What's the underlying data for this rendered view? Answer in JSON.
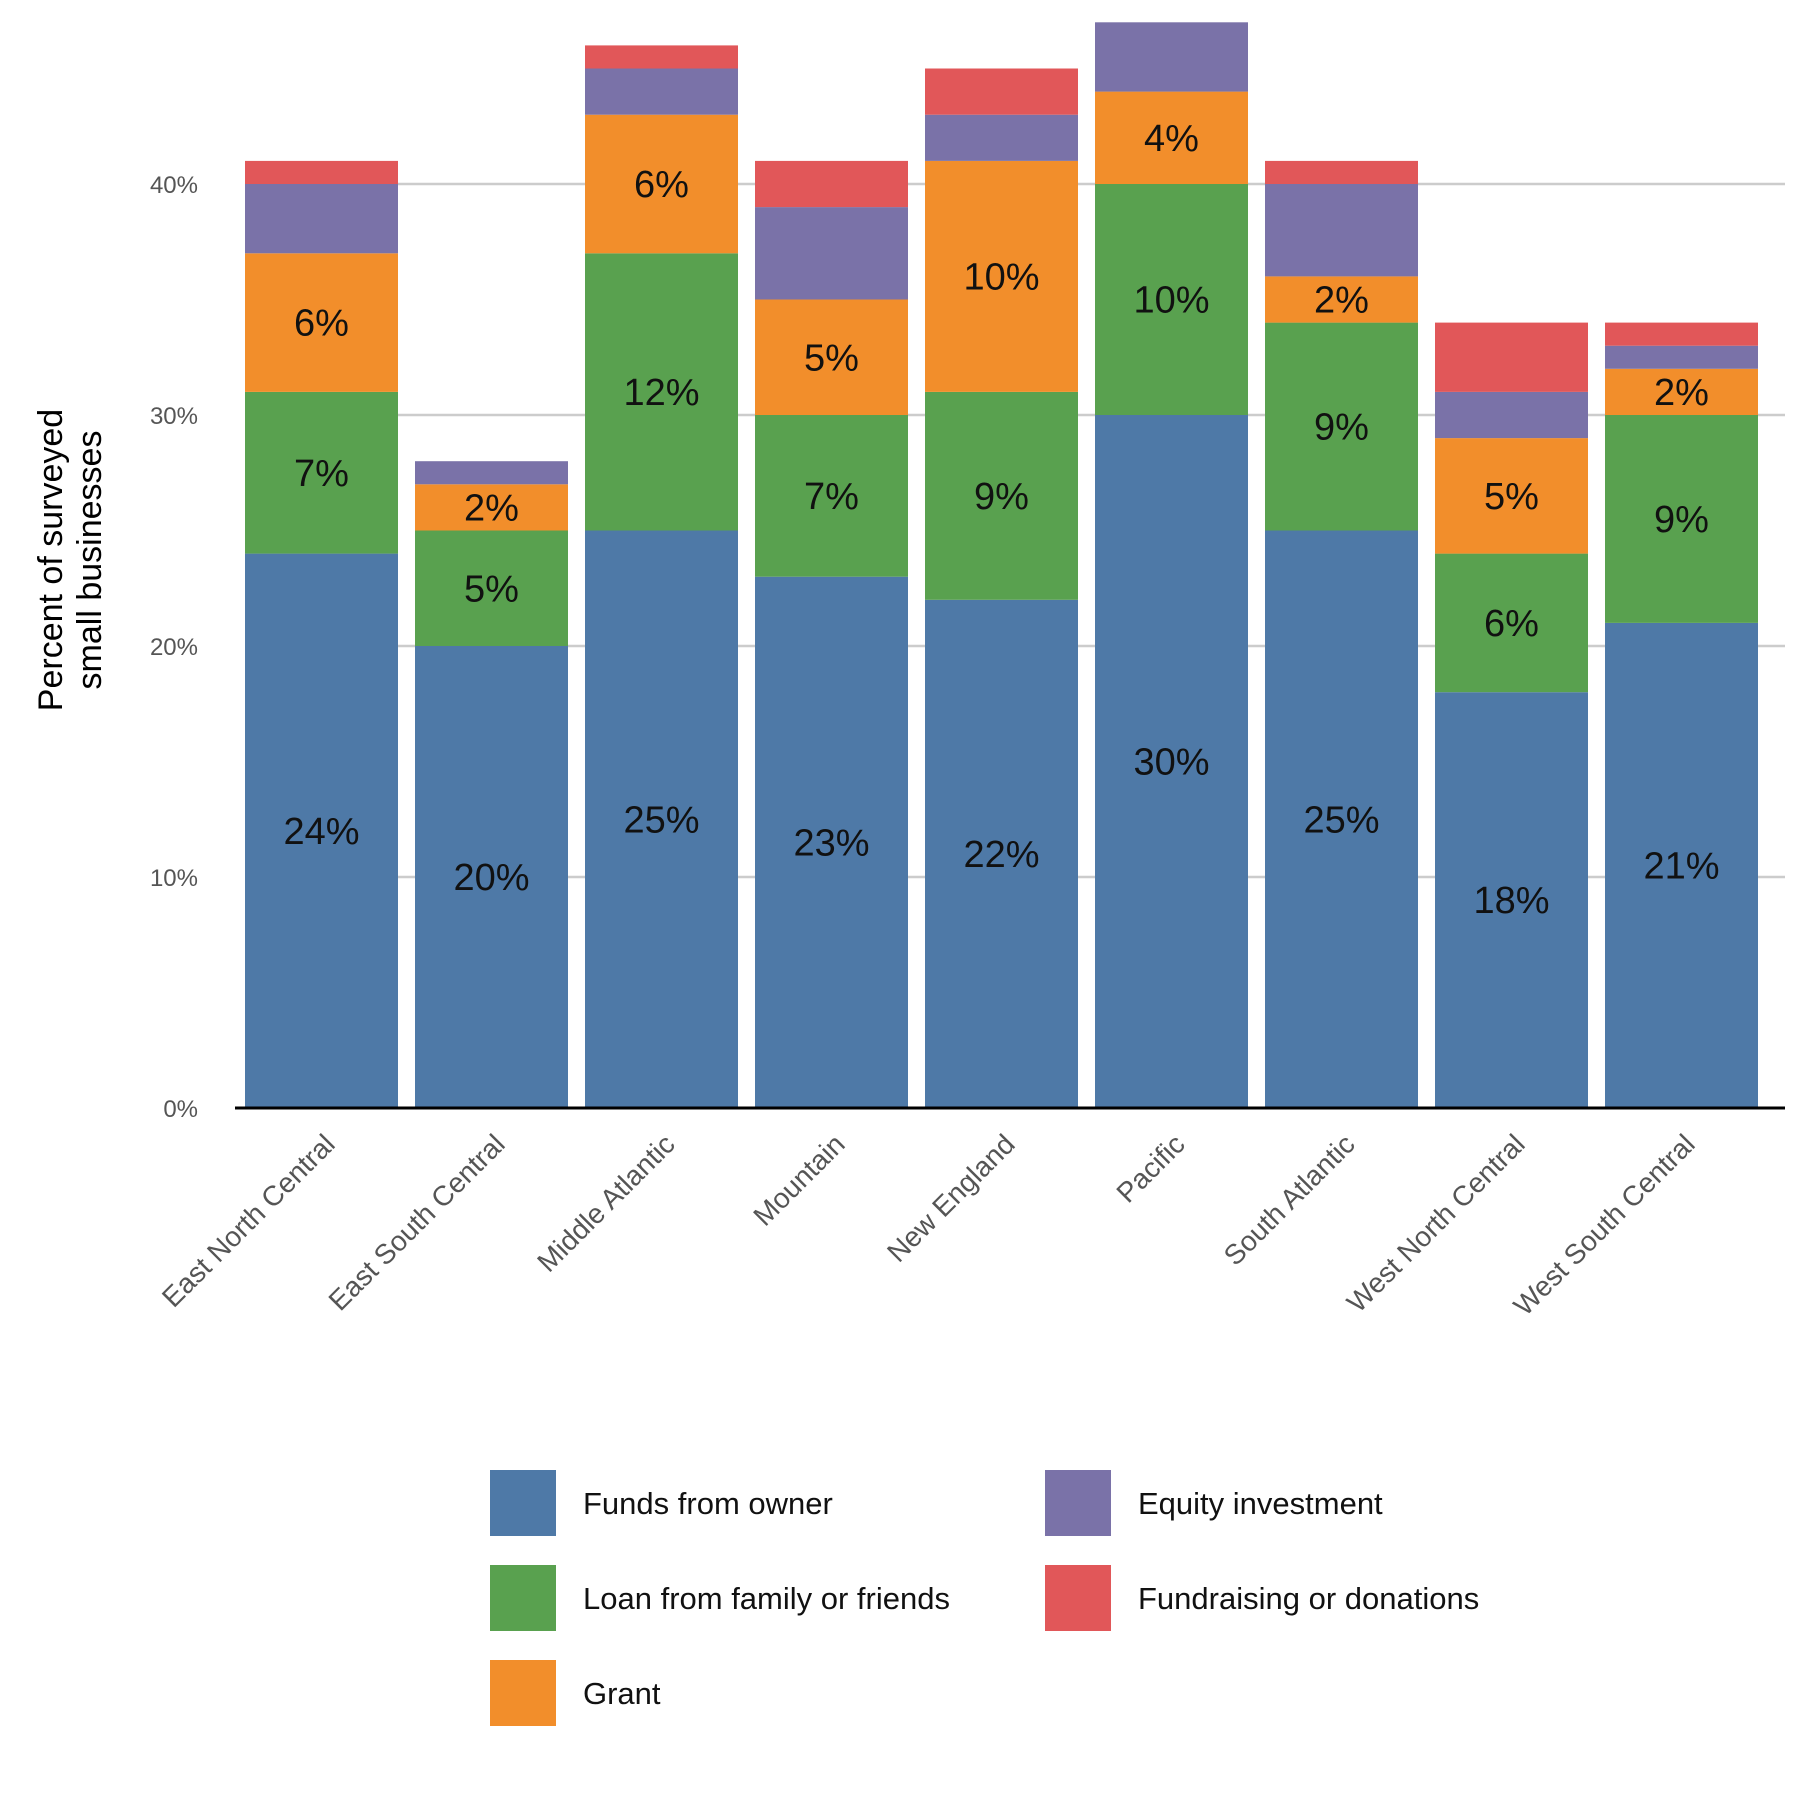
{
  "chart_data": {
    "type": "bar",
    "stacked": true,
    "title": "",
    "xlabel": "",
    "ylabel": "Percent of surveyed\nsmall businesses",
    "ylim": [
      0,
      47
    ],
    "y_ticks": [
      0,
      10,
      20,
      30,
      40
    ],
    "y_tick_labels": [
      "0%",
      "10%",
      "20%",
      "30%",
      "40%"
    ],
    "grid": "horizontal",
    "legend_position": "bottom",
    "categories": [
      "East North Central",
      "East South Central",
      "Middle Atlantic",
      "Mountain",
      "New England",
      "Pacific",
      "South Atlantic",
      "West North Central",
      "West South Central"
    ],
    "series": [
      {
        "name": "Funds from owner",
        "color": "#4e79a7",
        "values": [
          24,
          20,
          25,
          23,
          22,
          30,
          25,
          18,
          21
        ],
        "labels": [
          "24%",
          "20%",
          "25%",
          "23%",
          "22%",
          "30%",
          "25%",
          "18%",
          "21%"
        ]
      },
      {
        "name": "Loan from family or friends",
        "color": "#59a14f",
        "values": [
          7,
          5,
          12,
          7,
          9,
          10,
          9,
          6,
          9
        ],
        "labels": [
          "7%",
          "5%",
          "12%",
          "7%",
          "9%",
          "10%",
          "9%",
          "6%",
          "9%"
        ]
      },
      {
        "name": "Grant",
        "color": "#f28e2b",
        "values": [
          6,
          2,
          6,
          5,
          10,
          4,
          2,
          5,
          2
        ],
        "labels": [
          "6%",
          "2%",
          "6%",
          "5%",
          "10%",
          "4%",
          "2%",
          "5%",
          "2%"
        ]
      },
      {
        "name": "Equity investment",
        "color": "#7a72a8",
        "values": [
          3,
          1,
          2,
          4,
          2,
          3,
          4,
          2,
          1
        ],
        "labels": [
          "",
          "",
          "",
          "",
          "",
          "",
          "",
          "",
          ""
        ]
      },
      {
        "name": "Fundraising or donations",
        "color": "#e15759",
        "values": [
          1,
          0,
          1,
          2,
          2,
          0,
          1,
          3,
          1
        ],
        "labels": [
          "",
          "",
          "",
          "",
          "",
          "",
          "",
          "",
          ""
        ]
      }
    ]
  }
}
